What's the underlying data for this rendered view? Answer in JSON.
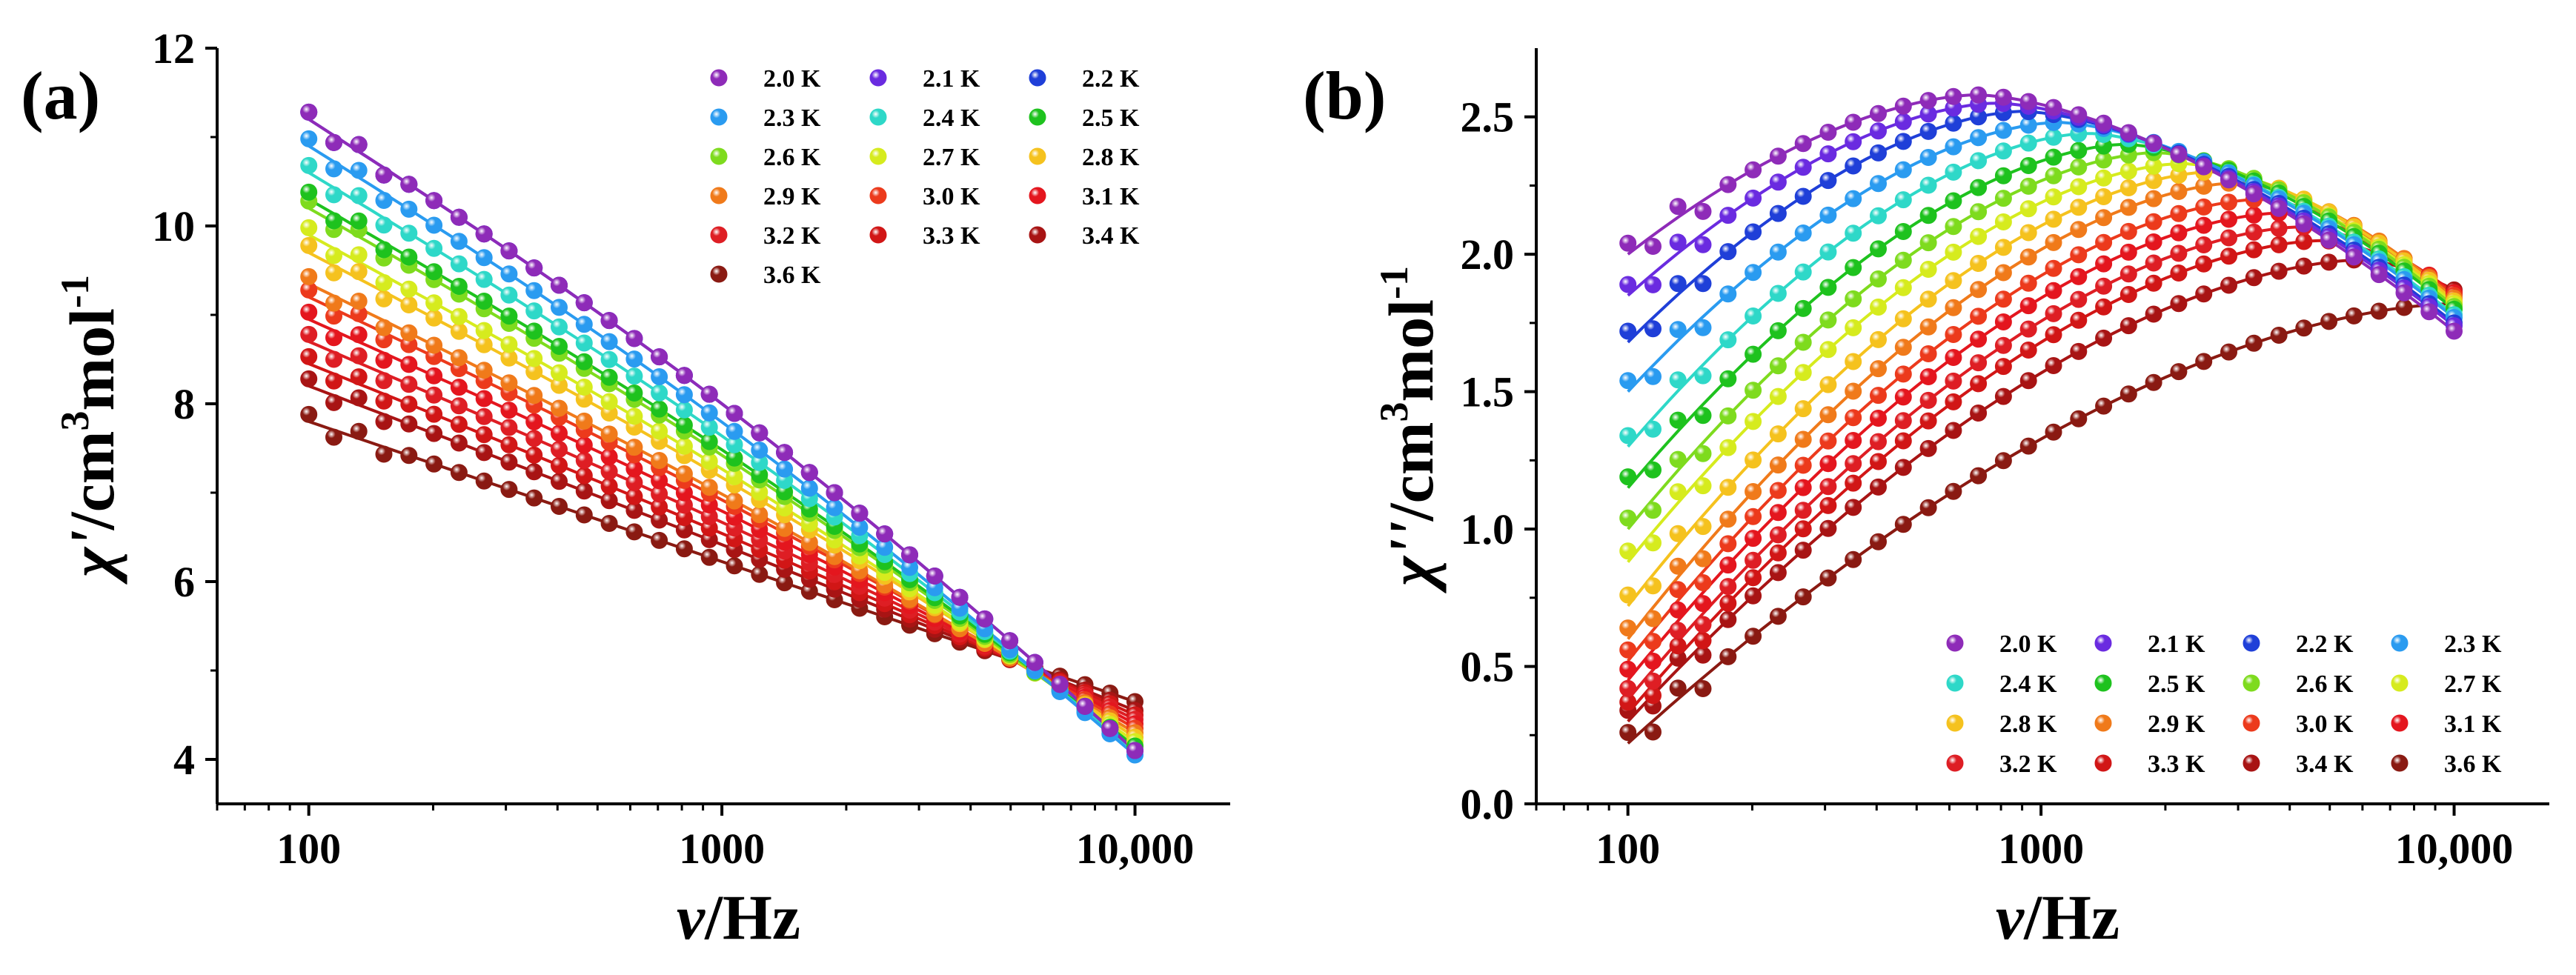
{
  "colors": {
    "2.0 K": "#8E2BB8",
    "2.1 K": "#6A2BE0",
    "2.2 K": "#1F3FD8",
    "2.3 K": "#2A9BF0",
    "2.4 K": "#2ED8C8",
    "2.5 K": "#1EC21E",
    "2.6 K": "#7EDB1E",
    "2.7 K": "#D6EB1E",
    "2.8 K": "#F5C21E",
    "2.9 K": "#F07A1A",
    "3.0 K": "#EC3A1C",
    "3.1 K": "#E4161E",
    "3.2 K": "#DE1E24",
    "3.3 K": "#D11616",
    "3.4 K": "#A81414",
    "3.6 K": "#8A1A12"
  },
  "chart_data": [
    {
      "type": "scatter",
      "panel_label": "(a)",
      "title": "",
      "xlabel_symbol": "ν",
      "xlabel_unit": "/Hz",
      "ylabel": "χ'/cm3mol-1",
      "ylabel_parts": {
        "symbol": "χ'",
        "unit": "/cm",
        "sup1": "3",
        "mol": "mol",
        "sup2": "-1"
      },
      "xscale": "log",
      "xlim": [
        60,
        17000
      ],
      "ylim": [
        3.5,
        12
      ],
      "xticks": [
        100,
        1000,
        10000
      ],
      "xtick_labels": [
        "100",
        "1000",
        "10,000"
      ],
      "yticks": [
        4,
        6,
        8,
        10,
        12
      ],
      "ytick_labels": [
        "4",
        "6",
        "8",
        "10",
        "12"
      ],
      "legend_position": "top-right",
      "legend": [
        "2.0 K",
        "2.1 K",
        "2.2 K",
        "2.3 K",
        "2.4 K",
        "2.5 K",
        "2.6 K",
        "2.7 K",
        "2.8 K",
        "2.9 K",
        "3.0 K",
        "3.1 K",
        "3.2 K",
        "3.3 K",
        "3.4 K",
        "3.6 K"
      ],
      "series": [
        {
          "name": "2.0 K",
          "y_at_100": 11.2,
          "y_at_10000": 4.1
        },
        {
          "name": "2.1 K",
          "y_at_100": 11.2,
          "y_at_10000": 4.1
        },
        {
          "name": "2.2 K",
          "y_at_100": 11.2,
          "y_at_10000": 4.1
        },
        {
          "name": "2.3 K",
          "y_at_100": 10.9,
          "y_at_10000": 4.05
        },
        {
          "name": "2.4 K",
          "y_at_100": 10.6,
          "y_at_10000": 4.1
        },
        {
          "name": "2.5 K",
          "y_at_100": 10.3,
          "y_at_10000": 4.15
        },
        {
          "name": "2.6 K",
          "y_at_100": 10.2,
          "y_at_10000": 4.15
        },
        {
          "name": "2.7 K",
          "y_at_100": 9.9,
          "y_at_10000": 4.2
        },
        {
          "name": "2.8 K",
          "y_at_100": 9.7,
          "y_at_10000": 4.25
        },
        {
          "name": "2.9 K",
          "y_at_100": 9.35,
          "y_at_10000": 4.3
        },
        {
          "name": "3.0 K",
          "y_at_100": 9.2,
          "y_at_10000": 4.35
        },
        {
          "name": "3.1 K",
          "y_at_100": 8.95,
          "y_at_10000": 4.4
        },
        {
          "name": "3.2 K",
          "y_at_100": 8.7,
          "y_at_10000": 4.45
        },
        {
          "name": "3.3 K",
          "y_at_100": 8.45,
          "y_at_10000": 4.5
        },
        {
          "name": "3.4 K",
          "y_at_100": 8.2,
          "y_at_10000": 4.55
        },
        {
          "name": "3.6 K",
          "y_at_100": 7.8,
          "y_at_10000": 4.65
        }
      ]
    },
    {
      "type": "scatter",
      "panel_label": "(b)",
      "title": "",
      "xlabel_symbol": "ν",
      "xlabel_unit": "/Hz",
      "ylabel": "χ''/cm3mol-1",
      "ylabel_parts": {
        "symbol": "χ''",
        "unit": "/cm",
        "sup1": "3",
        "mol": "mol",
        "sup2": "-1"
      },
      "xscale": "log",
      "xlim": [
        60,
        17000
      ],
      "ylim": [
        0,
        2.75
      ],
      "xticks": [
        100,
        1000,
        10000
      ],
      "xtick_labels": [
        "100",
        "1000",
        "10,000"
      ],
      "yticks": [
        0,
        0.5,
        1,
        1.5,
        2,
        2.5
      ],
      "ytick_labels": [
        "0.0",
        "0.5",
        "1.0",
        "1.5",
        "2.0",
        "2.5"
      ],
      "legend_position": "bottom-right",
      "legend": [
        "2.0 K",
        "2.1 K",
        "2.2 K",
        "2.3 K",
        "2.4 K",
        "2.5 K",
        "2.6 K",
        "2.7 K",
        "2.8 K",
        "2.9 K",
        "3.0 K",
        "3.1 K",
        "3.2 K",
        "3.3 K",
        "3.4 K",
        "3.6 K"
      ],
      "series": [
        {
          "name": "2.0 K",
          "y_at_100": 2.0,
          "peak_freq": 700,
          "peak_value": 2.58,
          "y_at_10000": 1.72
        },
        {
          "name": "2.1 K",
          "y_at_100": 1.85,
          "peak_freq": 780,
          "peak_value": 2.55,
          "y_at_10000": 1.74
        },
        {
          "name": "2.2 K",
          "y_at_100": 1.68,
          "peak_freq": 900,
          "peak_value": 2.52,
          "y_at_10000": 1.75
        },
        {
          "name": "2.3 K",
          "y_at_100": 1.5,
          "peak_freq": 1100,
          "peak_value": 2.48,
          "y_at_10000": 1.77
        },
        {
          "name": "2.4 K",
          "y_at_100": 1.3,
          "peak_freq": 1300,
          "peak_value": 2.44,
          "y_at_10000": 1.78
        },
        {
          "name": "2.5 K",
          "y_at_100": 1.15,
          "peak_freq": 1600,
          "peak_value": 2.4,
          "y_at_10000": 1.8
        },
        {
          "name": "2.6 K",
          "y_at_100": 1.0,
          "peak_freq": 1900,
          "peak_value": 2.37,
          "y_at_10000": 1.81
        },
        {
          "name": "2.7 K",
          "y_at_100": 0.88,
          "peak_freq": 2200,
          "peak_value": 2.33,
          "y_at_10000": 1.82
        },
        {
          "name": "2.8 K",
          "y_at_100": 0.72,
          "peak_freq": 2600,
          "peak_value": 2.3,
          "y_at_10000": 1.83
        },
        {
          "name": "2.9 K",
          "y_at_100": 0.6,
          "peak_freq": 3000,
          "peak_value": 2.26,
          "y_at_10000": 1.84
        },
        {
          "name": "3.0 K",
          "y_at_100": 0.52,
          "peak_freq": 3400,
          "peak_value": 2.2,
          "y_at_10000": 1.85
        },
        {
          "name": "3.1 K",
          "y_at_100": 0.45,
          "peak_freq": 3800,
          "peak_value": 2.15,
          "y_at_10000": 1.86
        },
        {
          "name": "3.2 K",
          "y_at_100": 0.38,
          "peak_freq": 4300,
          "peak_value": 2.1,
          "y_at_10000": 1.86
        },
        {
          "name": "3.3 K",
          "y_at_100": 0.33,
          "peak_freq": 4800,
          "peak_value": 2.05,
          "y_at_10000": 1.86
        },
        {
          "name": "3.4 K",
          "y_at_100": 0.3,
          "peak_freq": 6000,
          "peak_value": 1.98,
          "y_at_10000": 1.87
        },
        {
          "name": "3.6 K",
          "y_at_100": 0.22,
          "peak_freq": 10000,
          "peak_value": 1.82,
          "y_at_10000": 1.82
        }
      ]
    }
  ]
}
